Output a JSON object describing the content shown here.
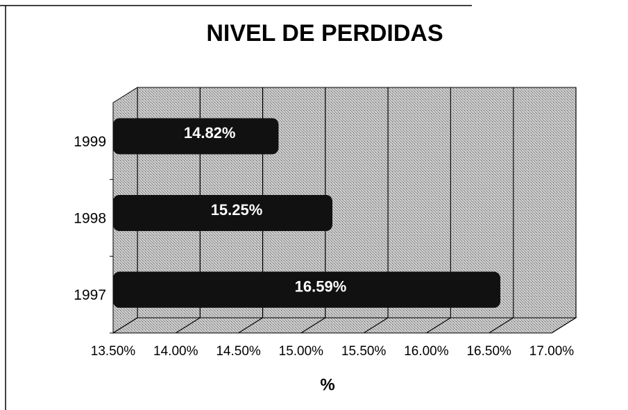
{
  "chart_data": {
    "type": "bar",
    "orientation": "horizontal",
    "title": "NIVEL DE PERDIDAS",
    "x_label": "%",
    "categories": [
      "1999",
      "1998",
      "1997"
    ],
    "values": [
      14.82,
      15.25,
      16.59
    ],
    "value_labels": [
      "14.82%",
      "15.25%",
      "16.59%"
    ],
    "color": "#111111",
    "xlim": [
      13.5,
      17
    ],
    "xticks": [
      {
        "value": 13.5,
        "label": "13.50%"
      },
      {
        "value": 14,
        "label": "14.00%"
      },
      {
        "value": 14.5,
        "label": "14.50%"
      },
      {
        "value": 15,
        "label": "15.00%"
      },
      {
        "value": 15.5,
        "label": "15.50%"
      },
      {
        "value": 16,
        "label": "16.00%"
      },
      {
        "value": 16.5,
        "label": "16.50%"
      },
      {
        "value": 17,
        "label": "17.00%"
      }
    ],
    "grid": true
  }
}
